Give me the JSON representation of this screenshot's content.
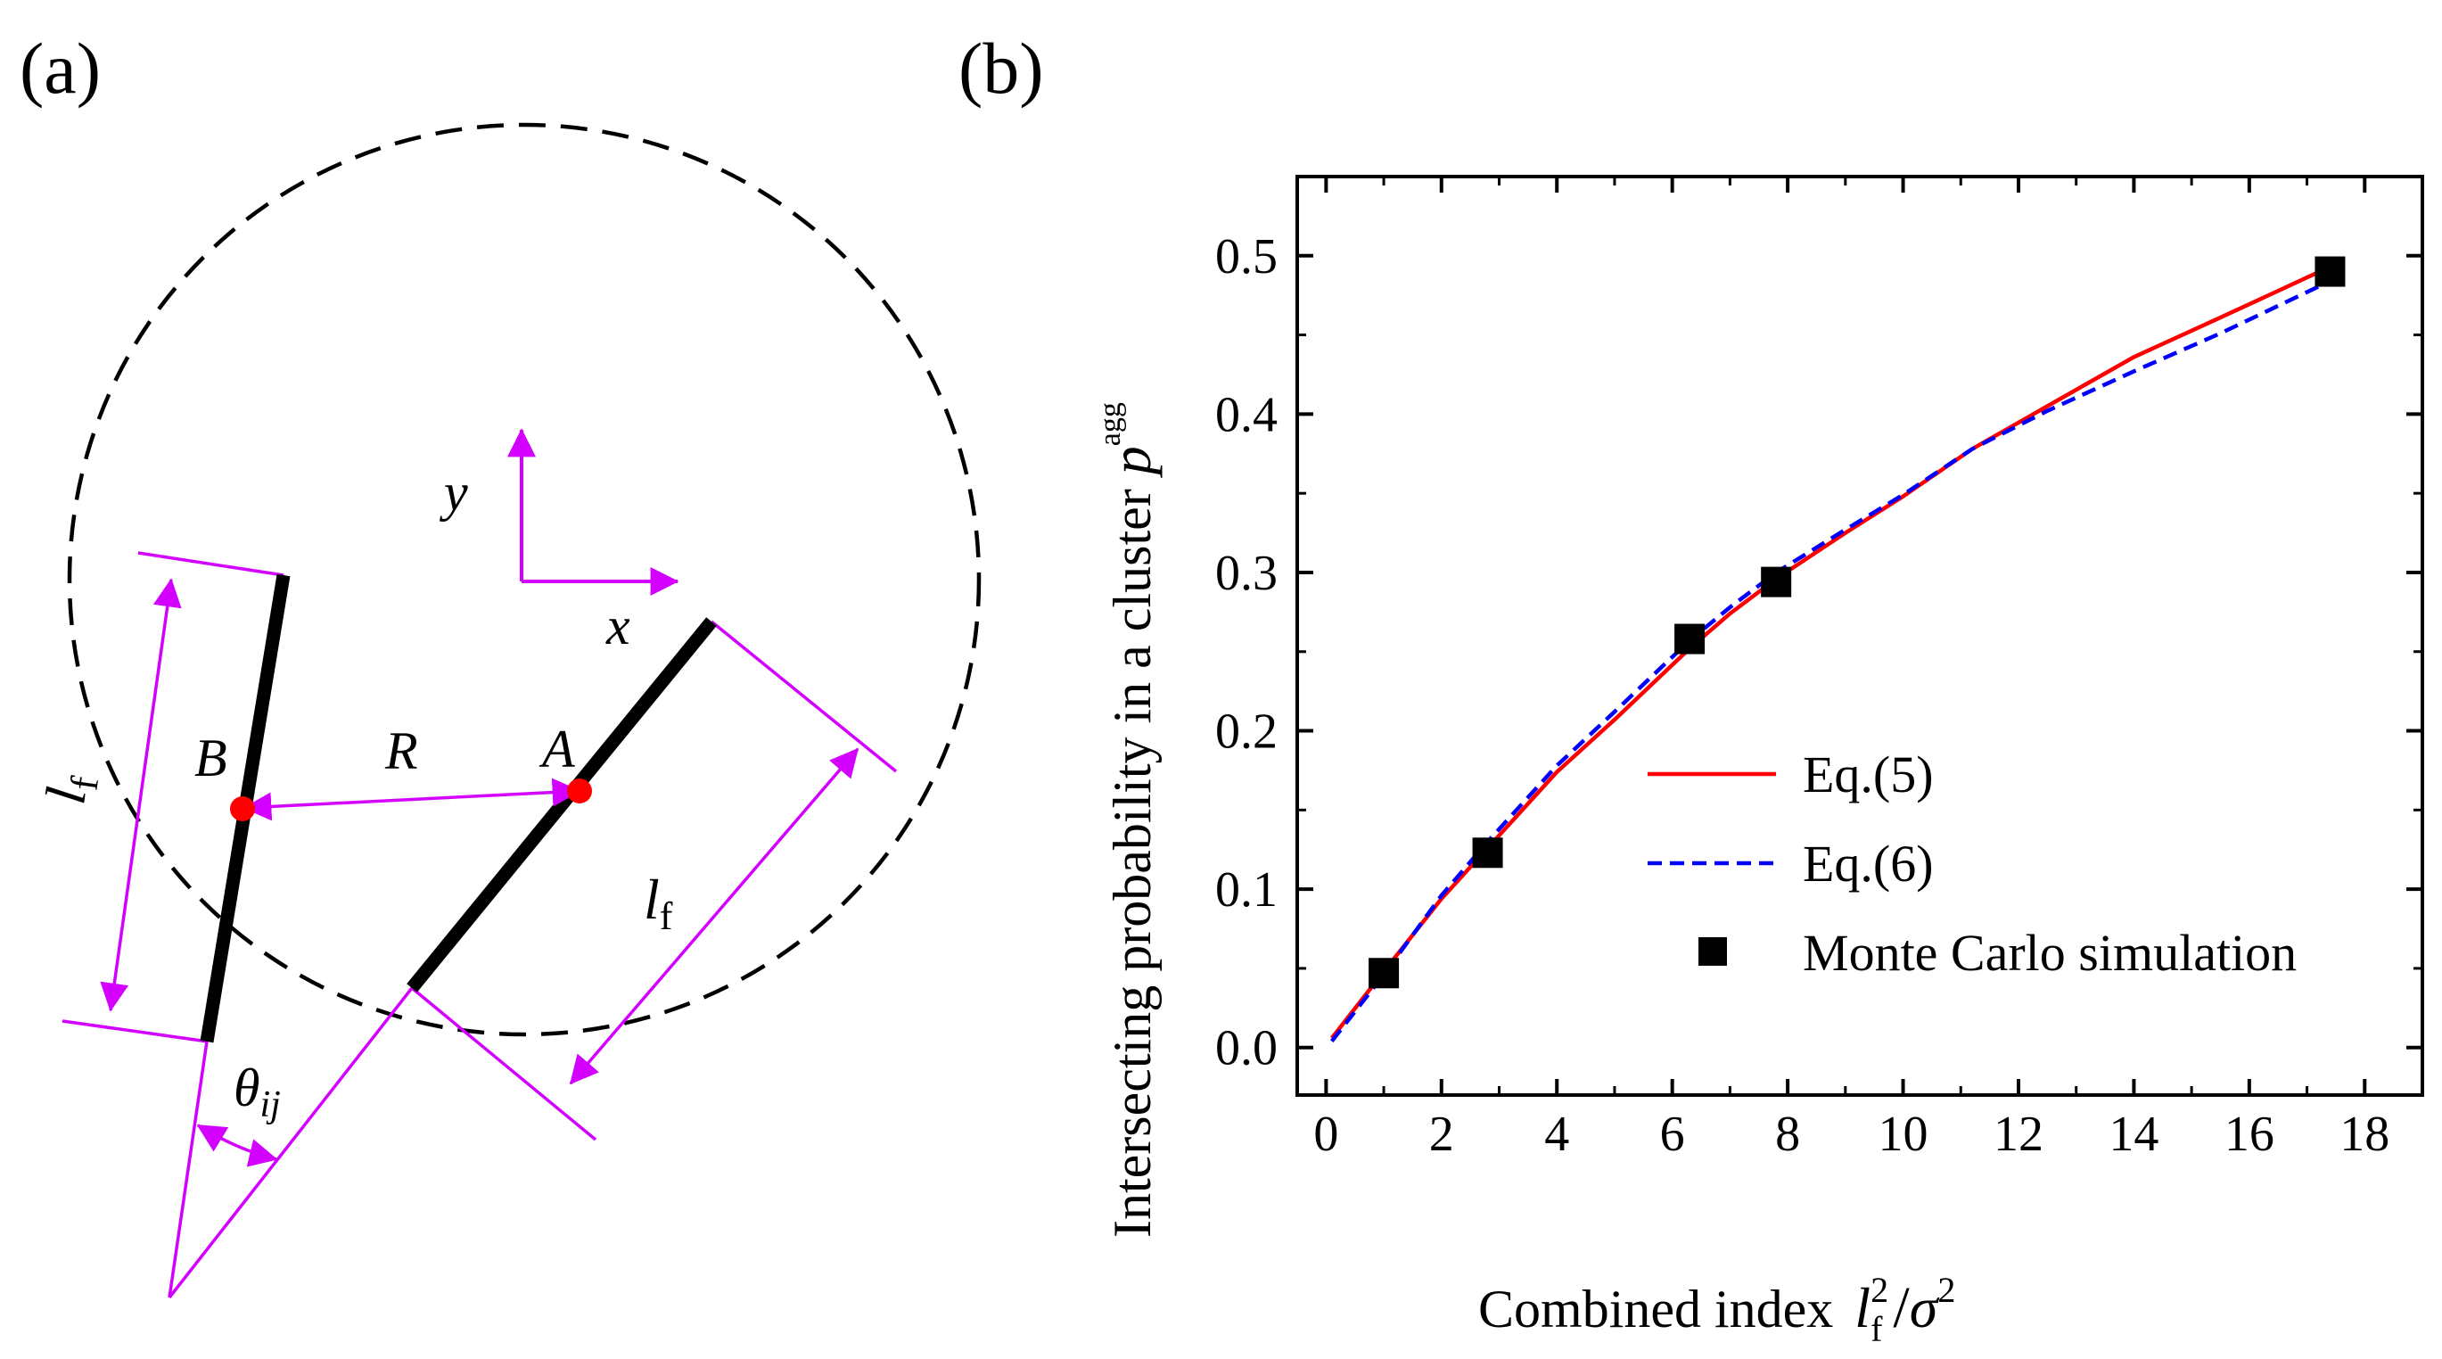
{
  "panel_a": {
    "label": "(a)",
    "axis_x": "x",
    "axis_y": "y",
    "point_A": "A",
    "point_B": "B",
    "distance": "R",
    "length_main": "l",
    "length_sub": "f",
    "angle_main": "θ",
    "angle_sub": "ij",
    "colors": {
      "annotation": "#d400ff",
      "fracture": "#000000",
      "center": "#ff0000",
      "circle": "#000000"
    }
  },
  "panel_b": {
    "label": "(b)",
    "xtitle_text": "Combined index",
    "xtitle_l": "l",
    "xtitle_sup": "2",
    "xtitle_sub": "f",
    "xtitle_slash": "/",
    "xtitle_sigma": "σ",
    "xtitle_sigma_sup": "2",
    "ytitle_text": "Intersecting probability in a cluster",
    "ytitle_p": "p",
    "ytitle_sup": "agg"
  },
  "chart_data": {
    "type": "line",
    "title": "",
    "xlabel": "Combined index l_f^2/σ^2",
    "ylabel": "Intersecting probability in a cluster p^agg",
    "xlim": [
      -0.5,
      19.0
    ],
    "ylim": [
      -0.03,
      0.55
    ],
    "xticks": [
      "0",
      "2",
      "4",
      "6",
      "8",
      "10",
      "12",
      "14",
      "16",
      "18"
    ],
    "yticks": [
      "0.0",
      "0.1",
      "0.2",
      "0.3",
      "0.4",
      "0.5"
    ],
    "legend_position": "center-right",
    "series": [
      {
        "name": "Eq.(5)",
        "style": "solid",
        "color": "#ff0000",
        "x": [
          0.1,
          1.0,
          2.0,
          2.8,
          4.0,
          5.0,
          6.3,
          7.0,
          7.8,
          9.0,
          10.0,
          11.2,
          12.5,
          14.0,
          15.5,
          17.4
        ],
        "y": [
          0.006,
          0.048,
          0.094,
          0.126,
          0.174,
          0.207,
          0.252,
          0.274,
          0.296,
          0.325,
          0.348,
          0.378,
          0.405,
          0.436,
          0.461,
          0.493
        ]
      },
      {
        "name": "Eq.(6)",
        "style": "dashed",
        "color": "#0000ff",
        "x": [
          0.1,
          1.0,
          2.0,
          2.8,
          4.0,
          5.0,
          6.3,
          7.0,
          7.8,
          9.0,
          10.0,
          11.2,
          12.5,
          14.0,
          15.5,
          17.4
        ],
        "y": [
          0.004,
          0.046,
          0.096,
          0.13,
          0.178,
          0.212,
          0.257,
          0.278,
          0.3,
          0.327,
          0.349,
          0.378,
          0.402,
          0.427,
          0.451,
          0.484
        ]
      },
      {
        "name": "Monte Carlo simulation",
        "style": "marker",
        "color": "#000000",
        "x": [
          1.0,
          2.8,
          6.3,
          7.8,
          17.4
        ],
        "y": [
          0.047,
          0.123,
          0.258,
          0.294,
          0.49
        ]
      }
    ]
  }
}
